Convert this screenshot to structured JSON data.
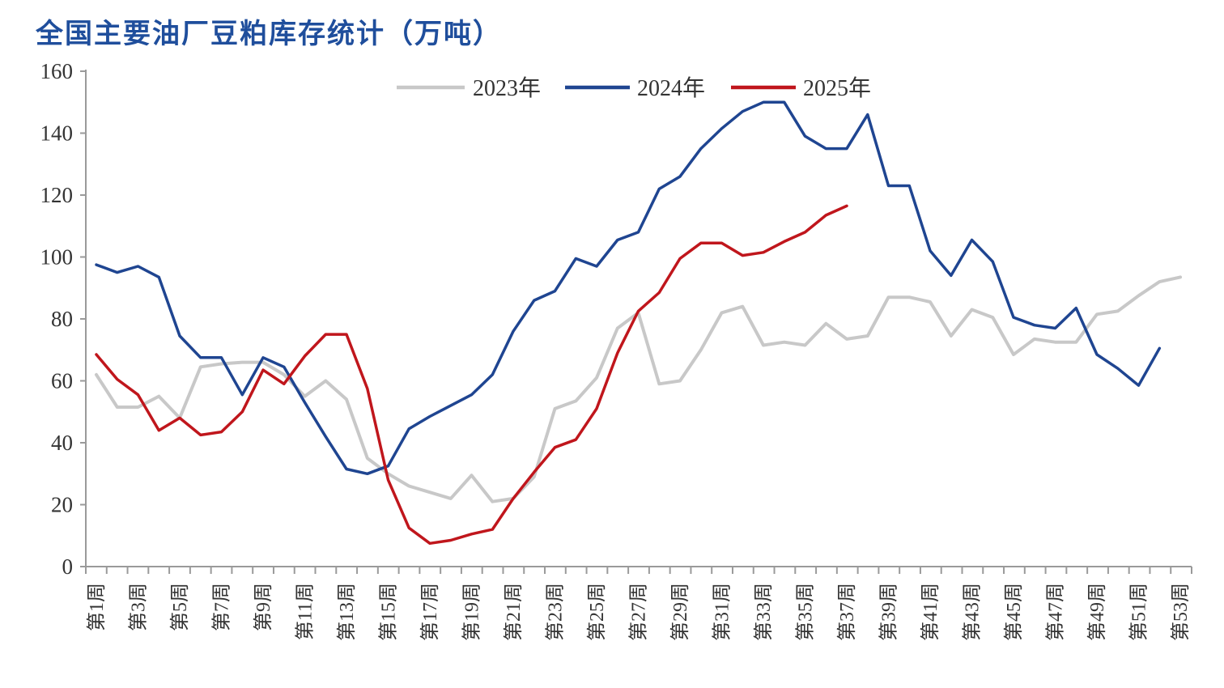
{
  "chart_data": {
    "type": "line",
    "title": "全国主要油厂豆粕库存统计（万吨）",
    "xlabel": "",
    "ylabel": "",
    "ylim": [
      0,
      160
    ],
    "yticks": [
      0,
      20,
      40,
      60,
      80,
      100,
      120,
      140,
      160
    ],
    "x_tick_labels": [
      "第1周",
      "第3周",
      "第5周",
      "第7周",
      "第9周",
      "第11周",
      "第13周",
      "第15周",
      "第17周",
      "第19周",
      "第21周",
      "第23周",
      "第25周",
      "第27周",
      "第29周",
      "第31周",
      "第33周",
      "第35周",
      "第37周",
      "第39周",
      "第41周",
      "第43周",
      "第45周",
      "第47周",
      "第49周",
      "第51周",
      "第53周"
    ],
    "weeks": [
      1,
      2,
      3,
      4,
      5,
      6,
      7,
      8,
      9,
      10,
      11,
      12,
      13,
      14,
      15,
      16,
      17,
      18,
      19,
      20,
      21,
      22,
      23,
      24,
      25,
      26,
      27,
      28,
      29,
      30,
      31,
      32,
      33,
      34,
      35,
      36,
      37,
      38,
      39,
      40,
      41,
      42,
      43,
      44,
      45,
      46,
      47,
      48,
      49,
      50,
      51,
      52,
      53
    ],
    "legend_position": "top",
    "grid": false,
    "series": [
      {
        "name": "2023年",
        "color": "#c8c8c8",
        "values": [
          62,
          51.5,
          51.5,
          55,
          48,
          64.5,
          65.5,
          66,
          66,
          62,
          55,
          60,
          54,
          35,
          30,
          26,
          24,
          22,
          29.5,
          21,
          22,
          29,
          51,
          53.5,
          61,
          77,
          82,
          59,
          60,
          70,
          82,
          84,
          71.5,
          72.5,
          71.5,
          78.5,
          73.5,
          74.5,
          87,
          87,
          85.5,
          74.5,
          83,
          80.5,
          68.5,
          73.5,
          72.5,
          72.5,
          81.5,
          82.5,
          87.5,
          92,
          93.5
        ]
      },
      {
        "name": "2024年",
        "color": "#1f4591",
        "values": [
          97.5,
          95,
          97,
          93.5,
          74.5,
          67.5,
          67.5,
          55.5,
          67.5,
          64.5,
          53,
          42,
          31.5,
          30,
          32.5,
          44.5,
          48.5,
          52,
          55.5,
          62,
          76,
          86,
          89,
          99.5,
          97,
          105.5,
          108,
          122,
          126,
          135,
          141.5,
          147,
          150,
          150,
          139,
          135,
          135,
          146,
          123,
          123,
          102,
          94,
          105.5,
          98.5,
          80.5,
          78,
          77,
          83.5,
          68.5,
          64,
          58.5,
          70.5,
          null
        ]
      },
      {
        "name": "2025年",
        "color": "#c0161c",
        "values": [
          68.5,
          60.5,
          55.5,
          44,
          48,
          42.5,
          43.5,
          50,
          63.5,
          59,
          68,
          75,
          75,
          57.5,
          28,
          12.5,
          7.5,
          8.5,
          10.5,
          12,
          22,
          30.5,
          38.5,
          41,
          51,
          69,
          82.5,
          88.5,
          99.5,
          104.5,
          104.5,
          100.5,
          101.5,
          105,
          108,
          113.5,
          116.5,
          null,
          null,
          null,
          null,
          null,
          null,
          null,
          null,
          null,
          null,
          null,
          null,
          null,
          null,
          null,
          null
        ]
      }
    ]
  }
}
